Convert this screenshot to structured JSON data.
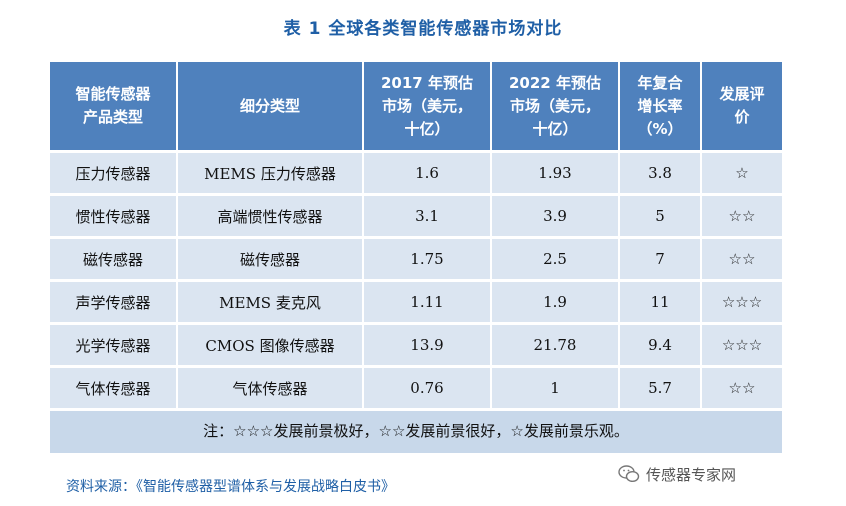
{
  "title": "表 1 全球各类智能传感器市场对比",
  "table": {
    "headers": [
      "智能传感器\n产品类型",
      "细分类型",
      "2017 年预估\n市场（美元，\n十亿）",
      "2022 年预估\n市场（美元，\n十亿）",
      "年复合\n增长率\n（%）",
      "发展评\n价"
    ],
    "rows": [
      [
        "压力传感器",
        "MEMS 压力传感器",
        "1.6",
        "1.93",
        "3.8",
        "☆"
      ],
      [
        "惯性传感器",
        "高端惯性传感器",
        "3.1",
        "3.9",
        "5",
        "☆☆"
      ],
      [
        "磁传感器",
        "磁传感器",
        "1.75",
        "2.5",
        "7",
        "☆☆"
      ],
      [
        "声学传感器",
        "MEMS 麦克风",
        "1.11",
        "1.9",
        "11",
        "☆☆☆"
      ],
      [
        "光学传感器",
        "CMOS 图像传感器",
        "13.9",
        "21.78",
        "9.4",
        "☆☆☆"
      ],
      [
        "气体传感器",
        "气体传感器",
        "0.76",
        "1",
        "5.7",
        "☆☆"
      ]
    ],
    "note": "注：☆☆☆发展前景极好，☆☆发展前景很好，☆发展前景乐观。"
  },
  "source": "资料来源：《智能传感器型谱体系与发展战略白皮书》",
  "watermark": {
    "icon": "wechat-icon",
    "text": "传感器专家网"
  },
  "colors": {
    "header_bg": "#4f81bd",
    "cell_bg": "#dbe5f1",
    "title": "#1f5fa6"
  }
}
